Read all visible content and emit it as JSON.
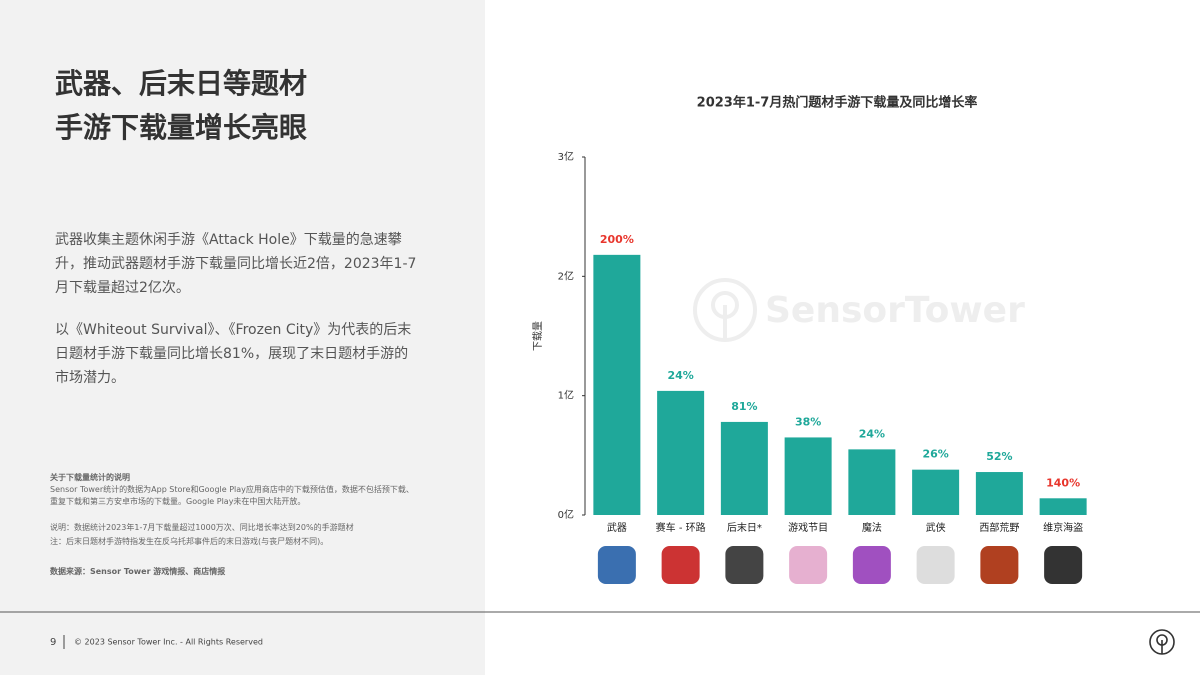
{
  "header": {
    "title_lines": [
      "武器、后末日等题材",
      "手游下载量增长亮眼"
    ]
  },
  "paragraphs": [
    "武器收集主题休闲手游《Attack Hole》下载量的急速攀升，推动武器题材手游下载量同比增长近2倍，2023年1-7月下载量超过2亿次。",
    "以《Whiteout Survival》、《Frozen City》为代表的后末日题材手游下载量同比增长81%，展现了末日题材手游的市场潜力。"
  ],
  "notes": {
    "heading": "关于下载量统计的说明",
    "body": "Sensor Tower统计的数据为App Store和Google Play应用商店中的下载预估值，数据不包括预下载、重复下载和第三方安卓市场的下载量。Google Play未在中国大陆开放。",
    "explain": "说明：数据统计2023年1-7月下载量超过1000万次、同比增长率达到20%的手游题材",
    "remark": "注：后末日题材手游特指发生在反乌托邦事件后的末日游戏(与丧尸题材不同)。",
    "source": "数据来源：Sensor Tower 游戏情报、商店情报"
  },
  "footer": {
    "page": "9",
    "copyright": "© 2023 Sensor Tower Inc. - All Rights Reserved"
  },
  "chart_data": {
    "type": "bar",
    "title": "2023年1-7月热门题材手游下载量及同比增长率",
    "watermark": "SensorTower",
    "y_label": "下载量",
    "categories": [
      "武器",
      "赛车 - 环路",
      "后末日*",
      "游戏节目",
      "魔法",
      "武侠",
      "西部荒野",
      "维京海盗"
    ],
    "values": [
      2.18,
      1.04,
      0.78,
      0.65,
      0.55,
      0.38,
      0.36,
      0.14
    ],
    "color": "#1fa89a",
    "ylim": [
      0,
      3
    ],
    "yticks": [
      {
        "value": 0,
        "label": "0亿"
      },
      {
        "value": 1,
        "label": "1亿"
      },
      {
        "value": 2,
        "label": "2亿"
      },
      {
        "value": 3,
        "label": "3亿"
      }
    ],
    "growth": {
      "values": [
        200,
        24,
        81,
        38,
        24,
        26,
        52,
        140
      ],
      "value_labels": [
        "200%",
        "24%",
        "81%",
        "38%",
        "24%",
        "26%",
        "52%",
        "140%"
      ],
      "colors": [
        "#e8362d",
        "#1fa89a",
        "#1fa89a",
        "#1fa89a",
        "#1fa89a",
        "#1fa89a",
        "#1fa89a",
        "#e8362d"
      ]
    }
  }
}
